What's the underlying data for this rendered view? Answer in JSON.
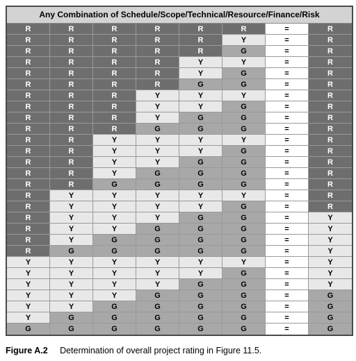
{
  "table": {
    "header": "Any Combination of Schedule/Scope/Technical/Resource/Finance/Risk",
    "header_bg": "#d3d3d3",
    "header_fg": "#000000",
    "colors": {
      "R": {
        "bg": "#6e6e6e",
        "fg": "#ffffff"
      },
      "Y": {
        "bg": "#e8e8e8",
        "fg": "#000000"
      },
      "G": {
        "bg": "#a8a8a8",
        "fg": "#000000"
      },
      "=": {
        "bg": "#ffffff",
        "fg": "#000000"
      }
    },
    "col7_symbol": "=",
    "rows": [
      [
        "R",
        "R",
        "R",
        "R",
        "R",
        "R",
        "=",
        "R"
      ],
      [
        "R",
        "R",
        "R",
        "R",
        "R",
        "Y",
        "=",
        "R"
      ],
      [
        "R",
        "R",
        "R",
        "R",
        "R",
        "G",
        "=",
        "R"
      ],
      [
        "R",
        "R",
        "R",
        "R",
        "Y",
        "Y",
        "=",
        "R"
      ],
      [
        "R",
        "R",
        "R",
        "R",
        "Y",
        "G",
        "=",
        "R"
      ],
      [
        "R",
        "R",
        "R",
        "R",
        "G",
        "G",
        "=",
        "R"
      ],
      [
        "R",
        "R",
        "R",
        "Y",
        "Y",
        "Y",
        "=",
        "R"
      ],
      [
        "R",
        "R",
        "R",
        "Y",
        "Y",
        "G",
        "=",
        "R"
      ],
      [
        "R",
        "R",
        "R",
        "Y",
        "G",
        "G",
        "=",
        "R"
      ],
      [
        "R",
        "R",
        "R",
        "G",
        "G",
        "G",
        "=",
        "R"
      ],
      [
        "R",
        "R",
        "Y",
        "Y",
        "Y",
        "Y",
        "=",
        "R"
      ],
      [
        "R",
        "R",
        "Y",
        "Y",
        "Y",
        "G",
        "=",
        "R"
      ],
      [
        "R",
        "R",
        "Y",
        "Y",
        "G",
        "G",
        "=",
        "R"
      ],
      [
        "R",
        "R",
        "Y",
        "G",
        "G",
        "G",
        "=",
        "R"
      ],
      [
        "R",
        "R",
        "G",
        "G",
        "G",
        "G",
        "=",
        "R"
      ],
      [
        "R",
        "Y",
        "Y",
        "Y",
        "Y",
        "Y",
        "=",
        "R"
      ],
      [
        "R",
        "Y",
        "Y",
        "Y",
        "Y",
        "G",
        "=",
        "R"
      ],
      [
        "R",
        "Y",
        "Y",
        "Y",
        "G",
        "G",
        "=",
        "Y"
      ],
      [
        "R",
        "Y",
        "Y",
        "G",
        "G",
        "G",
        "=",
        "Y"
      ],
      [
        "R",
        "Y",
        "G",
        "G",
        "G",
        "G",
        "=",
        "Y"
      ],
      [
        "R",
        "G",
        "G",
        "G",
        "G",
        "G",
        "=",
        "Y"
      ],
      [
        "Y",
        "Y",
        "Y",
        "Y",
        "Y",
        "Y",
        "=",
        "Y"
      ],
      [
        "Y",
        "Y",
        "Y",
        "Y",
        "Y",
        "G",
        "=",
        "Y"
      ],
      [
        "Y",
        "Y",
        "Y",
        "Y",
        "G",
        "G",
        "=",
        "Y"
      ],
      [
        "Y",
        "Y",
        "Y",
        "G",
        "G",
        "G",
        "=",
        "G"
      ],
      [
        "Y",
        "Y",
        "G",
        "G",
        "G",
        "G",
        "=",
        "G"
      ],
      [
        "Y",
        "G",
        "G",
        "G",
        "G",
        "G",
        "=",
        "G"
      ],
      [
        "G",
        "G",
        "G",
        "G",
        "G",
        "G",
        "=",
        "G"
      ]
    ]
  },
  "caption": {
    "label": "Figure A.2",
    "text": "Determination of overall project rating in Figure 11.5."
  }
}
